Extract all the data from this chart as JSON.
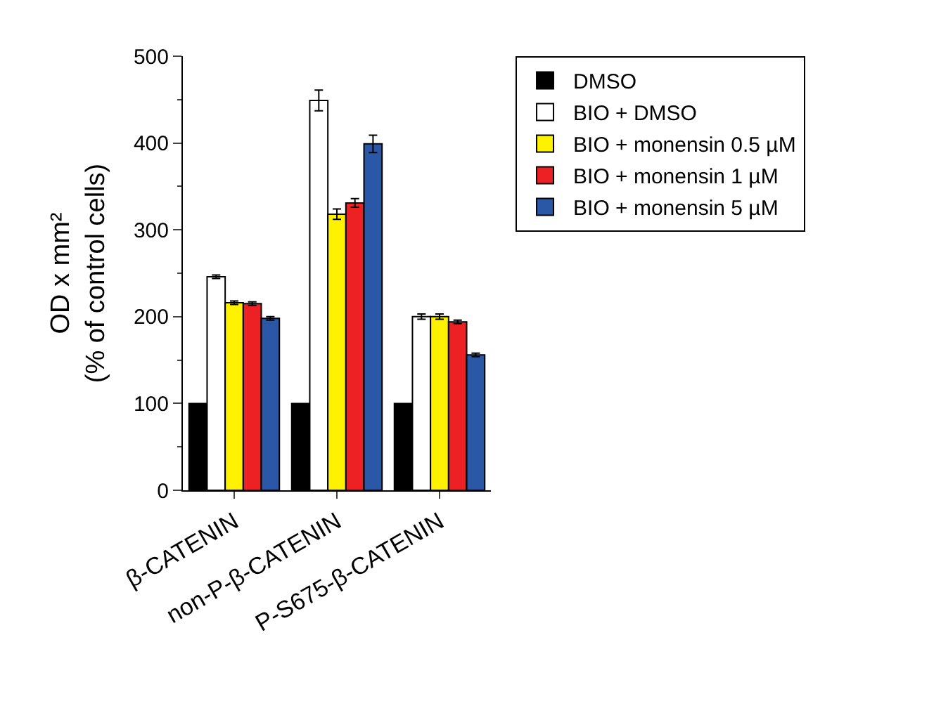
{
  "chart_data": {
    "type": "bar",
    "ylabel": "OD x mm²\n(% of control cells)",
    "categories": [
      "β-CATENIN",
      "non-P-β-CATENIN",
      "P-S675-β-CATENIN"
    ],
    "series": [
      {
        "name": "DMSO",
        "color": "#000000",
        "values": [
          100,
          100,
          100
        ]
      },
      {
        "name": "BIO + DMSO",
        "color": "#ffffff",
        "values": [
          246,
          449,
          200
        ],
        "errors": [
          2,
          12,
          3
        ]
      },
      {
        "name": "BIO + monensin 0.5 µM",
        "color": "#fff200",
        "values": [
          216,
          318,
          200
        ],
        "errors": [
          2,
          6,
          3
        ]
      },
      {
        "name": "BIO + monensin 1 µM",
        "color": "#ed2024",
        "values": [
          215,
          331,
          194
        ],
        "errors": [
          2,
          5,
          2
        ]
      },
      {
        "name": "BIO + monensin 5 µM",
        "color": "#2b57a7",
        "values": [
          198,
          399,
          156
        ],
        "errors": [
          2,
          10,
          2
        ]
      }
    ],
    "ylim": [
      0,
      500
    ],
    "yticks": [
      0,
      100,
      200,
      300,
      400,
      500
    ],
    "legend": "top right"
  }
}
